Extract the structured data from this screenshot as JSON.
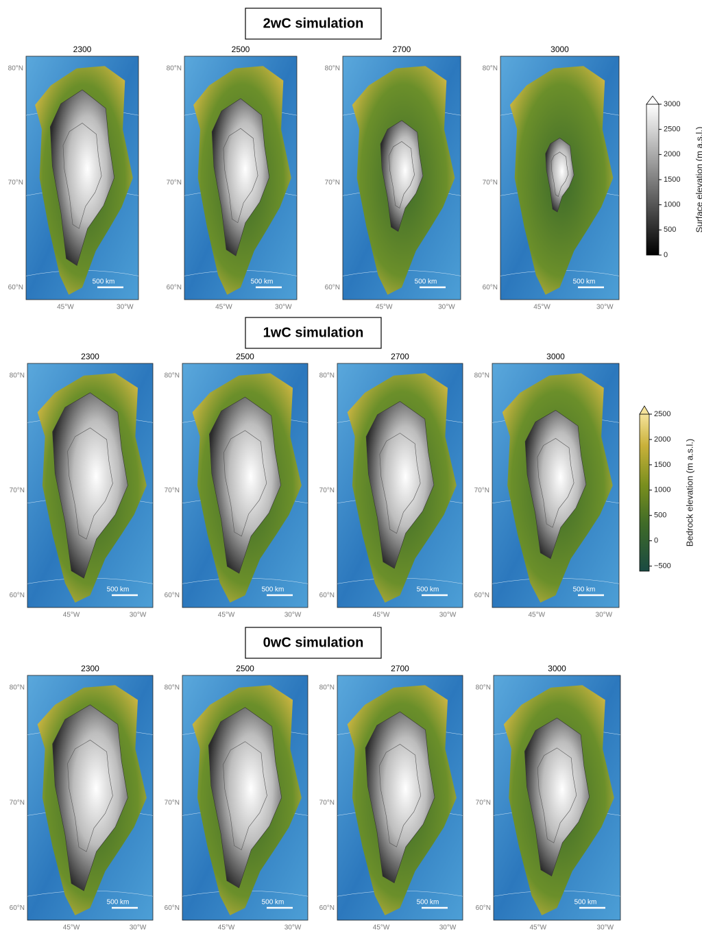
{
  "rows": [
    {
      "title": "2wC simulation",
      "panels": [
        "2300",
        "2500",
        "2700",
        "3000"
      ]
    },
    {
      "title": "1wC simulation",
      "panels": [
        "2300",
        "2500",
        "2700",
        "3000"
      ]
    },
    {
      "title": "0wC simulation",
      "panels": [
        "2300",
        "2500",
        "2700",
        "3000"
      ]
    }
  ],
  "lat_labels": [
    "80°N",
    "70°N",
    "60°N"
  ],
  "lon_labels": [
    "45°W",
    "30°W"
  ],
  "scale_bar": "500 km",
  "colorbars": [
    {
      "label": "Surface elevation (m a.s.l.)",
      "lim": [
        0,
        3000
      ],
      "ticks": [
        0,
        500,
        1000,
        1500,
        2000,
        2500,
        3000
      ]
    },
    {
      "label": "Bedrock elevation (m a.s.l.)",
      "lim": [
        -600,
        2500
      ],
      "ticks": [
        {
          "value": -500,
          "label": "−500"
        },
        0,
        500,
        1000,
        1500,
        2000,
        2500
      ]
    }
  ]
}
